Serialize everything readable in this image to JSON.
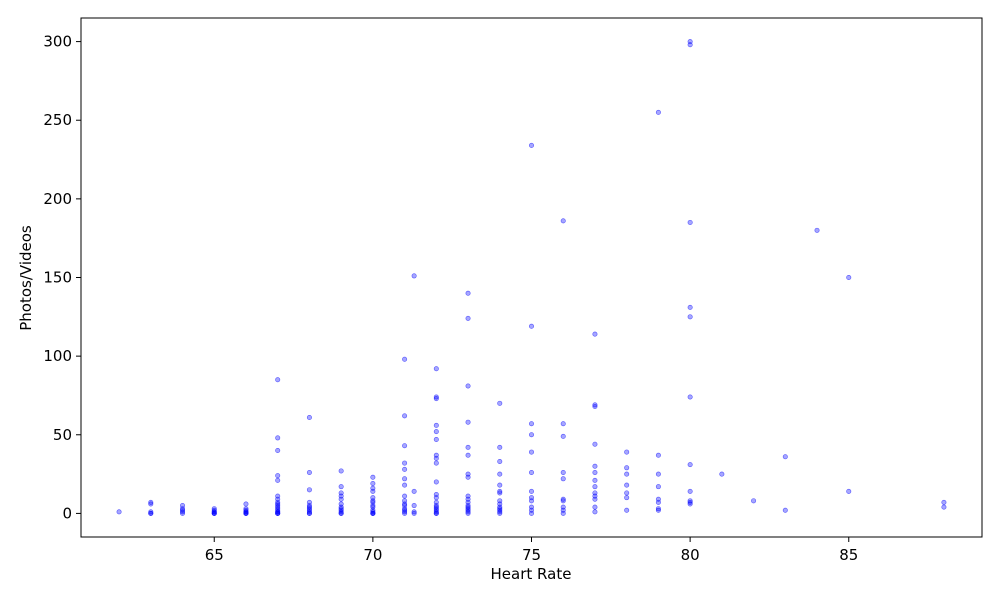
{
  "chart_data": {
    "type": "scatter",
    "title": "",
    "xlabel": "Heart Rate",
    "ylabel": "Photos/Videos",
    "xlim": [
      60.8,
      89.2
    ],
    "ylim": [
      -15,
      315
    ],
    "xticks": [
      65,
      70,
      75,
      80,
      85
    ],
    "yticks": [
      0,
      50,
      100,
      150,
      200,
      250,
      300
    ],
    "grid": false,
    "legend": "none",
    "marker_color": "#0000ff",
    "marker_alpha": 0.35,
    "points": [
      {
        "x": 62,
        "y": 1
      },
      {
        "x": 63,
        "y": 7
      },
      {
        "x": 63,
        "y": 6
      },
      {
        "x": 63,
        "y": 1
      },
      {
        "x": 63,
        "y": 0
      },
      {
        "x": 63,
        "y": 0
      },
      {
        "x": 64,
        "y": 5
      },
      {
        "x": 64,
        "y": 3
      },
      {
        "x": 64,
        "y": 2
      },
      {
        "x": 64,
        "y": 1
      },
      {
        "x": 64,
        "y": 0
      },
      {
        "x": 65,
        "y": 3
      },
      {
        "x": 65,
        "y": 2
      },
      {
        "x": 65,
        "y": 1
      },
      {
        "x": 65,
        "y": 1
      },
      {
        "x": 65,
        "y": 0
      },
      {
        "x": 65,
        "y": 0
      },
      {
        "x": 65,
        "y": 0
      },
      {
        "x": 66,
        "y": 6
      },
      {
        "x": 66,
        "y": 3
      },
      {
        "x": 66,
        "y": 2
      },
      {
        "x": 66,
        "y": 1
      },
      {
        "x": 66,
        "y": 1
      },
      {
        "x": 66,
        "y": 0
      },
      {
        "x": 66,
        "y": 0
      },
      {
        "x": 66,
        "y": 0
      },
      {
        "x": 67,
        "y": 85
      },
      {
        "x": 67,
        "y": 48
      },
      {
        "x": 67,
        "y": 40
      },
      {
        "x": 67,
        "y": 24
      },
      {
        "x": 67,
        "y": 21
      },
      {
        "x": 67,
        "y": 11
      },
      {
        "x": 67,
        "y": 9
      },
      {
        "x": 67,
        "y": 7
      },
      {
        "x": 67,
        "y": 6
      },
      {
        "x": 67,
        "y": 5
      },
      {
        "x": 67,
        "y": 4
      },
      {
        "x": 67,
        "y": 3
      },
      {
        "x": 67,
        "y": 2
      },
      {
        "x": 67,
        "y": 1
      },
      {
        "x": 67,
        "y": 1
      },
      {
        "x": 67,
        "y": 0
      },
      {
        "x": 67,
        "y": 0
      },
      {
        "x": 67,
        "y": 0
      },
      {
        "x": 68,
        "y": 61
      },
      {
        "x": 68,
        "y": 26
      },
      {
        "x": 68,
        "y": 15
      },
      {
        "x": 68,
        "y": 7
      },
      {
        "x": 68,
        "y": 5
      },
      {
        "x": 68,
        "y": 4
      },
      {
        "x": 68,
        "y": 3
      },
      {
        "x": 68,
        "y": 2
      },
      {
        "x": 68,
        "y": 1
      },
      {
        "x": 68,
        "y": 0
      },
      {
        "x": 68,
        "y": 0
      },
      {
        "x": 69,
        "y": 27
      },
      {
        "x": 69,
        "y": 17
      },
      {
        "x": 69,
        "y": 13
      },
      {
        "x": 69,
        "y": 11
      },
      {
        "x": 69,
        "y": 9
      },
      {
        "x": 69,
        "y": 6
      },
      {
        "x": 69,
        "y": 4
      },
      {
        "x": 69,
        "y": 3
      },
      {
        "x": 69,
        "y": 2
      },
      {
        "x": 69,
        "y": 1
      },
      {
        "x": 69,
        "y": 0
      },
      {
        "x": 69,
        "y": 0
      },
      {
        "x": 70,
        "y": 23
      },
      {
        "x": 70,
        "y": 19
      },
      {
        "x": 70,
        "y": 16
      },
      {
        "x": 70,
        "y": 14
      },
      {
        "x": 70,
        "y": 10
      },
      {
        "x": 70,
        "y": 8
      },
      {
        "x": 70,
        "y": 7
      },
      {
        "x": 70,
        "y": 5
      },
      {
        "x": 70,
        "y": 4
      },
      {
        "x": 70,
        "y": 2
      },
      {
        "x": 70,
        "y": 1
      },
      {
        "x": 70,
        "y": 0
      },
      {
        "x": 70,
        "y": 0
      },
      {
        "x": 70,
        "y": 0
      },
      {
        "x": 71,
        "y": 98
      },
      {
        "x": 71,
        "y": 62
      },
      {
        "x": 71,
        "y": 43
      },
      {
        "x": 71,
        "y": 32
      },
      {
        "x": 71,
        "y": 28
      },
      {
        "x": 71,
        "y": 22
      },
      {
        "x": 71,
        "y": 18
      },
      {
        "x": 71,
        "y": 11
      },
      {
        "x": 71,
        "y": 8
      },
      {
        "x": 71,
        "y": 6
      },
      {
        "x": 71,
        "y": 5
      },
      {
        "x": 71,
        "y": 3
      },
      {
        "x": 71,
        "y": 2
      },
      {
        "x": 71,
        "y": 1
      },
      {
        "x": 71,
        "y": 0
      },
      {
        "x": 71.3,
        "y": 151
      },
      {
        "x": 71.3,
        "y": 14
      },
      {
        "x": 71.3,
        "y": 5
      },
      {
        "x": 71.3,
        "y": 1
      },
      {
        "x": 71.3,
        "y": 0
      },
      {
        "x": 72,
        "y": 92
      },
      {
        "x": 72,
        "y": 74
      },
      {
        "x": 72,
        "y": 73
      },
      {
        "x": 72,
        "y": 56
      },
      {
        "x": 72,
        "y": 52
      },
      {
        "x": 72,
        "y": 47
      },
      {
        "x": 72,
        "y": 37
      },
      {
        "x": 72,
        "y": 35
      },
      {
        "x": 72,
        "y": 32
      },
      {
        "x": 72,
        "y": 20
      },
      {
        "x": 72,
        "y": 12
      },
      {
        "x": 72,
        "y": 10
      },
      {
        "x": 72,
        "y": 7
      },
      {
        "x": 72,
        "y": 5
      },
      {
        "x": 72,
        "y": 4
      },
      {
        "x": 72,
        "y": 3
      },
      {
        "x": 72,
        "y": 2
      },
      {
        "x": 72,
        "y": 1
      },
      {
        "x": 72,
        "y": 0
      },
      {
        "x": 72,
        "y": 0
      },
      {
        "x": 73,
        "y": 140
      },
      {
        "x": 73,
        "y": 124
      },
      {
        "x": 73,
        "y": 81
      },
      {
        "x": 73,
        "y": 58
      },
      {
        "x": 73,
        "y": 42
      },
      {
        "x": 73,
        "y": 37
      },
      {
        "x": 73,
        "y": 25
      },
      {
        "x": 73,
        "y": 23
      },
      {
        "x": 73,
        "y": 11
      },
      {
        "x": 73,
        "y": 9
      },
      {
        "x": 73,
        "y": 7
      },
      {
        "x": 73,
        "y": 5
      },
      {
        "x": 73,
        "y": 4
      },
      {
        "x": 73,
        "y": 3
      },
      {
        "x": 73,
        "y": 2
      },
      {
        "x": 73,
        "y": 1
      },
      {
        "x": 73,
        "y": 0
      },
      {
        "x": 74,
        "y": 70
      },
      {
        "x": 74,
        "y": 42
      },
      {
        "x": 74,
        "y": 33
      },
      {
        "x": 74,
        "y": 25
      },
      {
        "x": 74,
        "y": 18
      },
      {
        "x": 74,
        "y": 14
      },
      {
        "x": 74,
        "y": 13
      },
      {
        "x": 74,
        "y": 8
      },
      {
        "x": 74,
        "y": 6
      },
      {
        "x": 74,
        "y": 4
      },
      {
        "x": 74,
        "y": 3
      },
      {
        "x": 74,
        "y": 2
      },
      {
        "x": 74,
        "y": 1
      },
      {
        "x": 74,
        "y": 0
      },
      {
        "x": 75,
        "y": 234
      },
      {
        "x": 75,
        "y": 119
      },
      {
        "x": 75,
        "y": 57
      },
      {
        "x": 75,
        "y": 50
      },
      {
        "x": 75,
        "y": 39
      },
      {
        "x": 75,
        "y": 26
      },
      {
        "x": 75,
        "y": 14
      },
      {
        "x": 75,
        "y": 10
      },
      {
        "x": 75,
        "y": 8
      },
      {
        "x": 75,
        "y": 4
      },
      {
        "x": 75,
        "y": 2
      },
      {
        "x": 75,
        "y": 0
      },
      {
        "x": 76,
        "y": 186
      },
      {
        "x": 76,
        "y": 57
      },
      {
        "x": 76,
        "y": 49
      },
      {
        "x": 76,
        "y": 26
      },
      {
        "x": 76,
        "y": 22
      },
      {
        "x": 76,
        "y": 9
      },
      {
        "x": 76,
        "y": 8
      },
      {
        "x": 76,
        "y": 4
      },
      {
        "x": 76,
        "y": 2
      },
      {
        "x": 76,
        "y": 0
      },
      {
        "x": 77,
        "y": 114
      },
      {
        "x": 77,
        "y": 69
      },
      {
        "x": 77,
        "y": 68
      },
      {
        "x": 77,
        "y": 44
      },
      {
        "x": 77,
        "y": 30
      },
      {
        "x": 77,
        "y": 26
      },
      {
        "x": 77,
        "y": 21
      },
      {
        "x": 77,
        "y": 17
      },
      {
        "x": 77,
        "y": 13
      },
      {
        "x": 77,
        "y": 11
      },
      {
        "x": 77,
        "y": 9
      },
      {
        "x": 77,
        "y": 4
      },
      {
        "x": 77,
        "y": 1
      },
      {
        "x": 78,
        "y": 39
      },
      {
        "x": 78,
        "y": 29
      },
      {
        "x": 78,
        "y": 25
      },
      {
        "x": 78,
        "y": 18
      },
      {
        "x": 78,
        "y": 13
      },
      {
        "x": 78,
        "y": 10
      },
      {
        "x": 78,
        "y": 2
      },
      {
        "x": 79,
        "y": 255
      },
      {
        "x": 79,
        "y": 37
      },
      {
        "x": 79,
        "y": 25
      },
      {
        "x": 79,
        "y": 17
      },
      {
        "x": 79,
        "y": 9
      },
      {
        "x": 79,
        "y": 7
      },
      {
        "x": 79,
        "y": 3
      },
      {
        "x": 79,
        "y": 2
      },
      {
        "x": 80,
        "y": 300
      },
      {
        "x": 80,
        "y": 298
      },
      {
        "x": 80,
        "y": 185
      },
      {
        "x": 80,
        "y": 131
      },
      {
        "x": 80,
        "y": 125
      },
      {
        "x": 80,
        "y": 74
      },
      {
        "x": 80,
        "y": 31
      },
      {
        "x": 80,
        "y": 14
      },
      {
        "x": 80,
        "y": 8
      },
      {
        "x": 80,
        "y": 7
      },
      {
        "x": 80,
        "y": 6
      },
      {
        "x": 81,
        "y": 25
      },
      {
        "x": 82,
        "y": 8
      },
      {
        "x": 83,
        "y": 36
      },
      {
        "x": 83,
        "y": 2
      },
      {
        "x": 84,
        "y": 180
      },
      {
        "x": 85,
        "y": 150
      },
      {
        "x": 85,
        "y": 14
      },
      {
        "x": 88,
        "y": 7
      },
      {
        "x": 88,
        "y": 4
      }
    ]
  }
}
